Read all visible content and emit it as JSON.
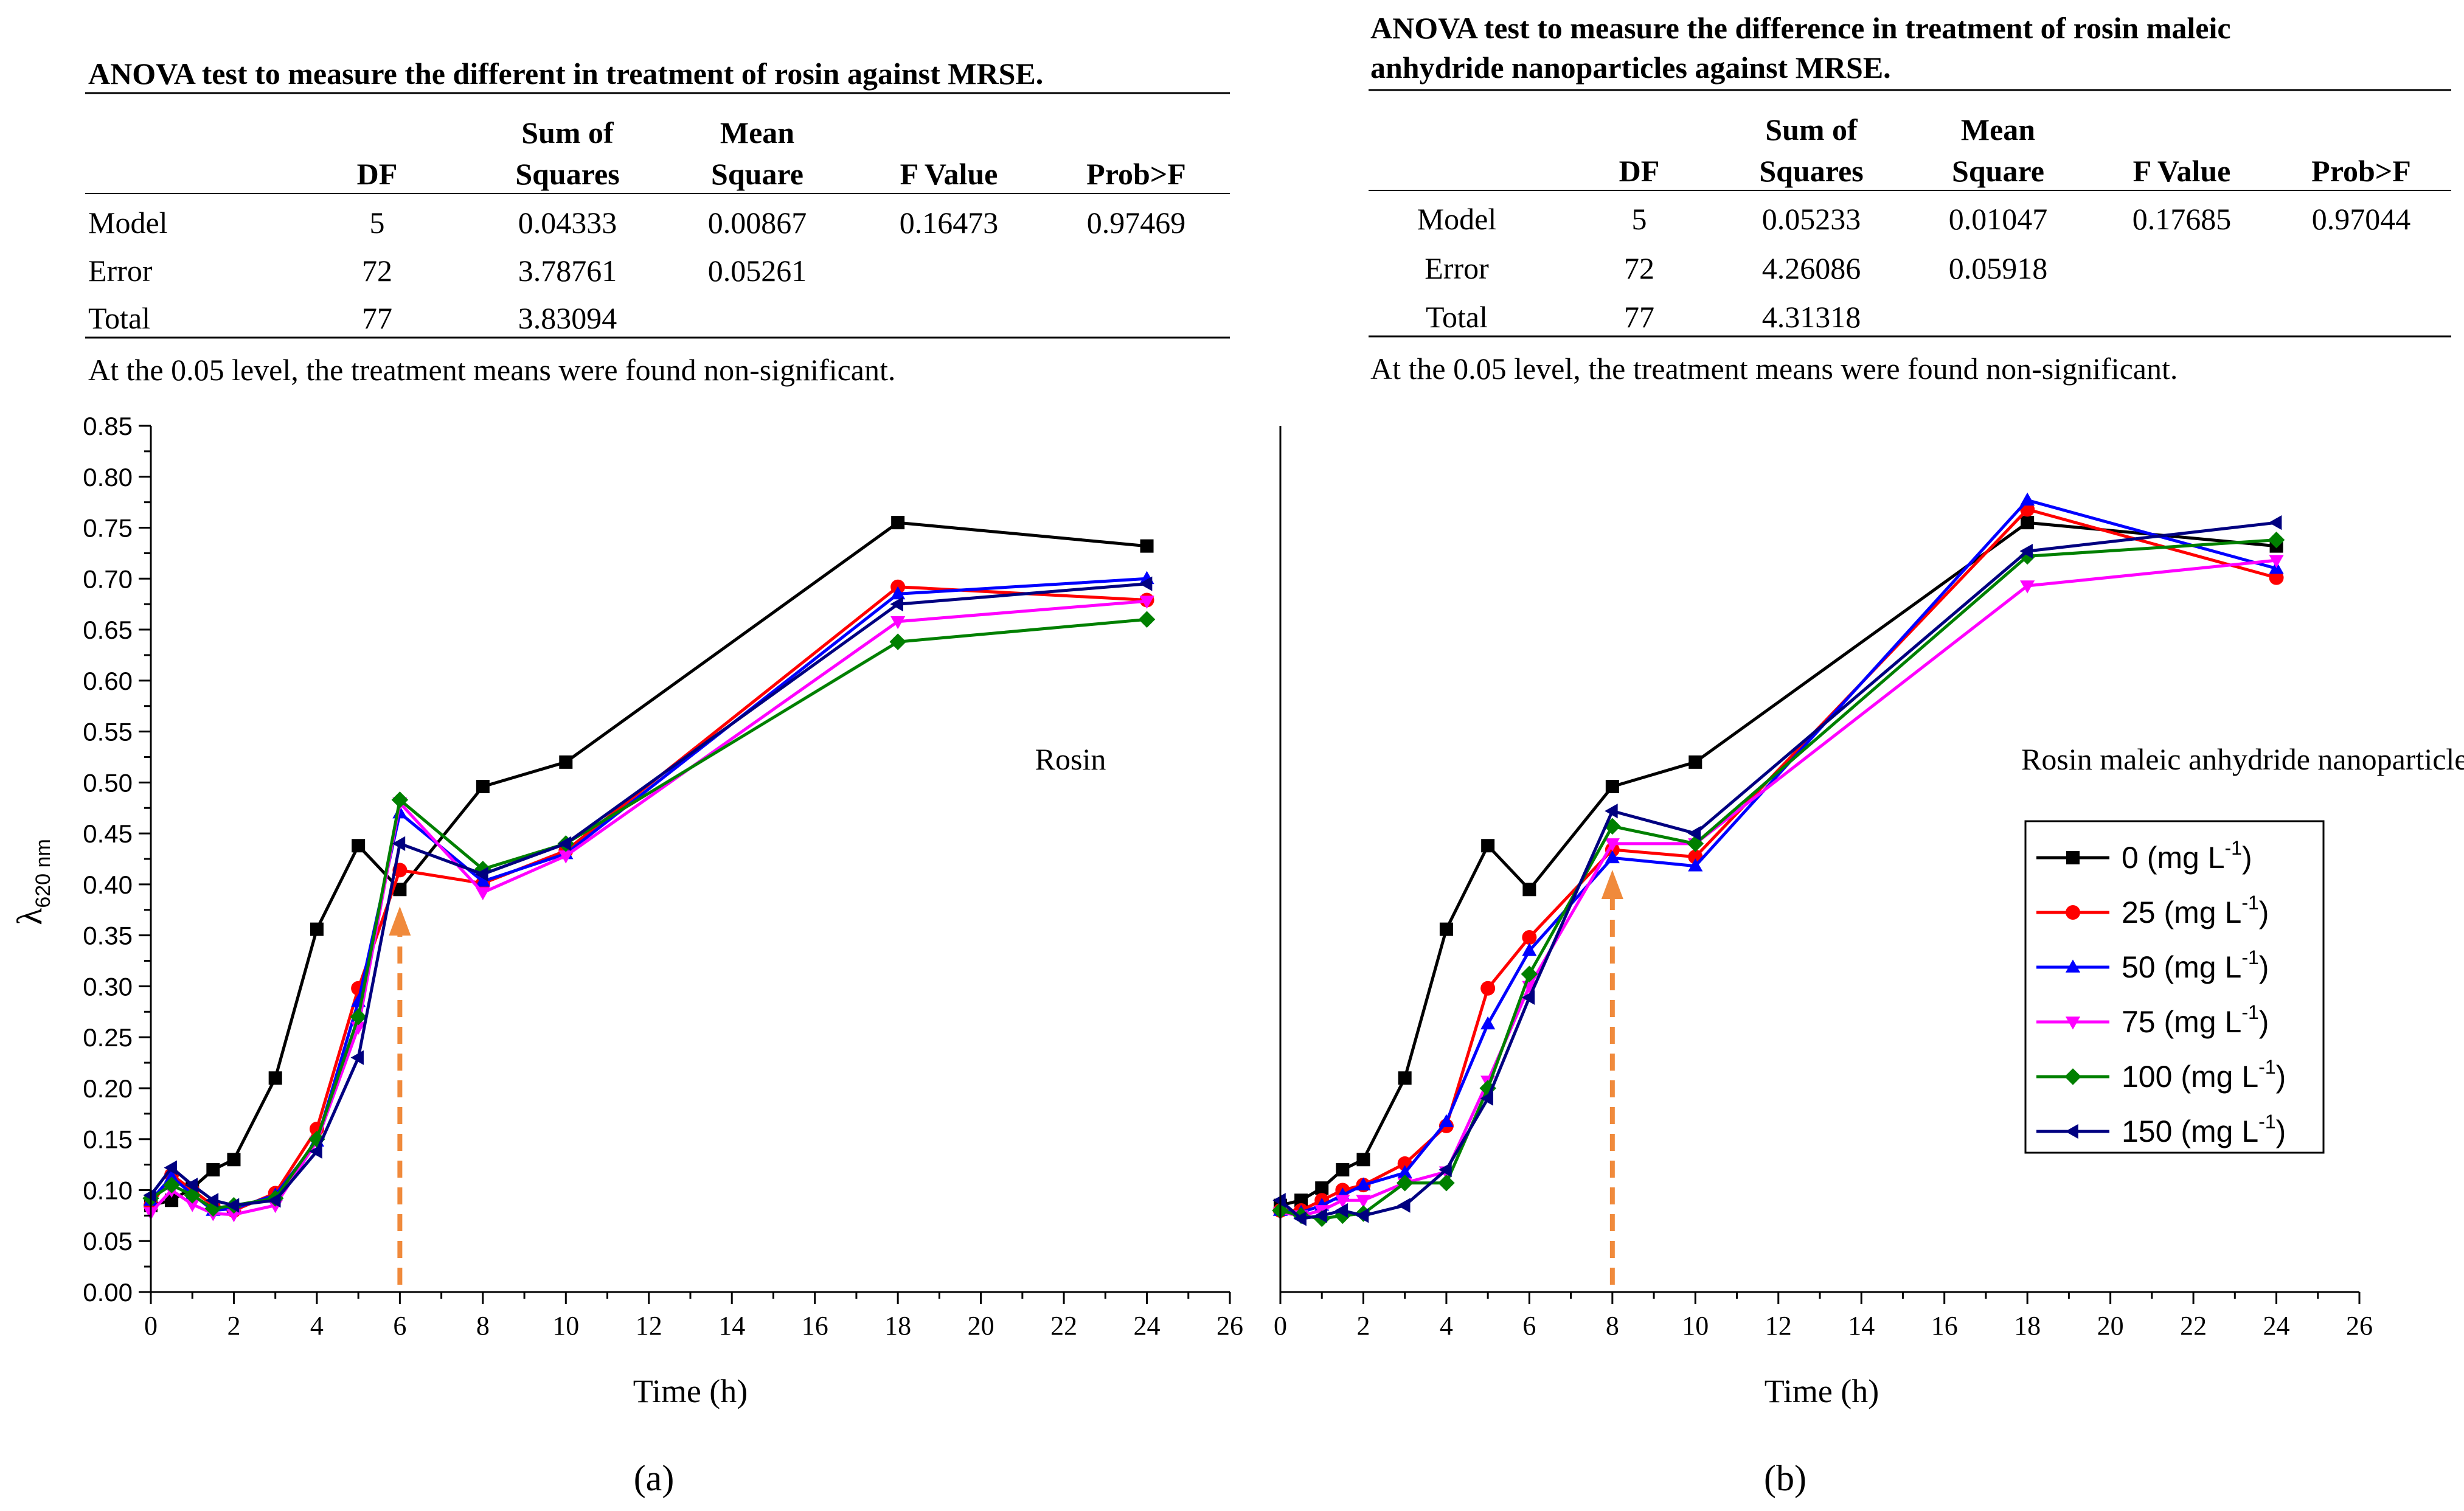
{
  "panel_a": {
    "anova": {
      "title": "ANOVA test to measure the different in treatment of rosin against MRSE.",
      "headers": {
        "df": "DF",
        "ss_line1": "Sum of",
        "ss_line2": "Squares",
        "ms_line1": "Mean",
        "ms_line2": "Square",
        "f": "F Value",
        "p": "Prob>F"
      },
      "rows": [
        {
          "source": "Model",
          "df": "5",
          "ss": "0.04333",
          "ms": "0.00867",
          "f": "0.16473",
          "p": "0.97469"
        },
        {
          "source": "Error",
          "df": "72",
          "ss": "3.78761",
          "ms": "0.05261",
          "f": "",
          "p": ""
        },
        {
          "source": "Total",
          "df": "77",
          "ss": "3.83094",
          "ms": "",
          "f": "",
          "p": ""
        }
      ],
      "note": "At the 0.05 level,  the treatment means were found non-significant."
    },
    "caption": "(a)"
  },
  "panel_b": {
    "anova": {
      "title_line1": "ANOVA test to measure the difference in treatment of rosin maleic",
      "title_line2": "anhydride nanoparticles against MRSE.",
      "headers": {
        "df": "DF",
        "ss_line1": "Sum of",
        "ss_line2": "Squares",
        "ms_line1": "Mean",
        "ms_line2": "Square",
        "f": "F Value",
        "p": "Prob>F"
      },
      "rows": [
        {
          "source": "Model",
          "df": "5",
          "ss": "0.05233",
          "ms": "0.01047",
          "f": "0.17685",
          "p": "0.97044"
        },
        {
          "source": "Error",
          "df": "72",
          "ss": "4.26086",
          "ms": "0.05918",
          "f": "",
          "p": ""
        },
        {
          "source": "Total",
          "df": "77",
          "ss": "4.31318",
          "ms": "",
          "f": "",
          "p": ""
        }
      ],
      "note": "At the 0.05 level,  the treatment means were found non-significant."
    },
    "caption": "(b)"
  },
  "colors": {
    "s0": "#000000",
    "s25": "#ff0000",
    "s50": "#0000ff",
    "s75": "#ff00ff",
    "s100": "#008000",
    "s150": "#000080",
    "arrow": "#f08a3c"
  },
  "chart_data": [
    {
      "type": "line",
      "title": "",
      "annotation": "Rosin",
      "arrow_at_x": 6,
      "xlabel": "Time (h)",
      "ylabel_main": "λ",
      "ylabel_sub": "620 nm",
      "xlim": [
        0,
        26
      ],
      "ylim": [
        0,
        0.85
      ],
      "xticks": [
        0,
        2,
        4,
        6,
        8,
        10,
        12,
        14,
        16,
        18,
        20,
        22,
        24,
        26
      ],
      "xtick_labels": [
        "0",
        "2",
        "4",
        "6",
        "8",
        "10",
        "12",
        "14",
        "16",
        "18",
        "20",
        "22",
        "24",
        "26"
      ],
      "yticks": [
        0,
        0.05,
        0.1,
        0.15,
        0.2,
        0.25,
        0.3,
        0.35,
        0.4,
        0.45,
        0.5,
        0.55,
        0.6,
        0.65,
        0.7,
        0.75,
        0.8,
        0.85
      ],
      "ytick_labels": [
        "0.00",
        "0.05",
        "0.10",
        "0.15",
        "0.20",
        "0.25",
        "0.30",
        "0.35",
        "0.40",
        "0.45",
        "0.50",
        "0.55",
        "0.60",
        "0.65",
        "0.70",
        "0.75",
        "0.80",
        "0.85"
      ],
      "x": [
        0,
        0.5,
        1,
        1.5,
        2,
        3,
        4,
        5,
        6,
        8,
        10,
        18,
        24
      ],
      "series": [
        {
          "name": "0",
          "marker": "square",
          "values": [
            0.085,
            0.09,
            0.102,
            0.12,
            0.13,
            0.21,
            0.356,
            0.438,
            0.395,
            0.496,
            0.52,
            0.755,
            0.732
          ]
        },
        {
          "name": "25",
          "marker": "circle",
          "values": [
            0.085,
            0.115,
            0.1,
            0.085,
            0.08,
            0.097,
            0.16,
            0.298,
            0.414,
            0.401,
            0.433,
            0.692,
            0.679
          ]
        },
        {
          "name": "50",
          "marker": "triangle-up",
          "values": [
            0.09,
            0.113,
            0.096,
            0.08,
            0.082,
            0.095,
            0.148,
            0.285,
            0.47,
            0.403,
            0.43,
            0.685,
            0.7
          ]
        },
        {
          "name": "75",
          "marker": "triangle-down",
          "values": [
            0.078,
            0.1,
            0.086,
            0.077,
            0.076,
            0.085,
            0.148,
            0.26,
            0.48,
            0.392,
            0.428,
            0.658,
            0.678
          ]
        },
        {
          "name": "100",
          "marker": "diamond",
          "values": [
            0.092,
            0.105,
            0.095,
            0.082,
            0.085,
            0.092,
            0.15,
            0.27,
            0.483,
            0.415,
            0.44,
            0.638,
            0.66
          ]
        },
        {
          "name": "150",
          "marker": "triangle-left",
          "values": [
            0.095,
            0.122,
            0.105,
            0.09,
            0.085,
            0.09,
            0.138,
            0.23,
            0.44,
            0.41,
            0.44,
            0.675,
            0.695
          ]
        }
      ]
    },
    {
      "type": "line",
      "title": "",
      "annotation": "Rosin maleic  anhydride nanoparticles",
      "arrow_at_x": 8,
      "xlabel": "Time (h)",
      "ylabel_main": "",
      "ylabel_sub": "",
      "xlim": [
        0,
        26
      ],
      "ylim": [
        0,
        0.85
      ],
      "xticks": [
        0,
        2,
        4,
        6,
        8,
        10,
        12,
        14,
        16,
        18,
        20,
        22,
        24,
        26
      ],
      "xtick_labels": [
        "0",
        "2",
        "4",
        "6",
        "8",
        "10",
        "12",
        "14",
        "16",
        "18",
        "20",
        "22",
        "24",
        "26"
      ],
      "x": [
        0,
        0.5,
        1,
        1.5,
        2,
        3,
        4,
        5,
        6,
        8,
        10,
        18,
        24
      ],
      "legend": {
        "position": "right-middle",
        "entries": [
          "0 (mg L",
          "25 (mg L",
          "50 (mg L",
          "75 (mg L",
          "100 (mg L",
          "150 (mg L"
        ],
        "sup": "-1",
        "close": ")"
      },
      "series": [
        {
          "name": "0",
          "marker": "square",
          "values": [
            0.085,
            0.09,
            0.102,
            0.12,
            0.13,
            0.21,
            0.356,
            0.438,
            0.395,
            0.496,
            0.52,
            0.755,
            0.732
          ]
        },
        {
          "name": "25",
          "marker": "circle",
          "values": [
            0.08,
            0.08,
            0.09,
            0.1,
            0.105,
            0.126,
            0.163,
            0.298,
            0.348,
            0.434,
            0.427,
            0.768,
            0.701
          ]
        },
        {
          "name": "50",
          "marker": "triangle-up",
          "values": [
            0.08,
            0.078,
            0.085,
            0.095,
            0.105,
            0.117,
            0.167,
            0.263,
            0.335,
            0.426,
            0.418,
            0.777,
            0.71
          ]
        },
        {
          "name": "75",
          "marker": "triangle-down",
          "values": [
            0.078,
            0.075,
            0.08,
            0.09,
            0.09,
            0.107,
            0.118,
            0.207,
            0.3,
            0.44,
            0.44,
            0.693,
            0.718
          ]
        },
        {
          "name": "100",
          "marker": "diamond",
          "values": [
            0.08,
            0.075,
            0.072,
            0.075,
            0.077,
            0.107,
            0.107,
            0.2,
            0.312,
            0.457,
            0.44,
            0.722,
            0.738
          ]
        },
        {
          "name": "150",
          "marker": "triangle-left",
          "values": [
            0.09,
            0.072,
            0.075,
            0.08,
            0.075,
            0.085,
            0.12,
            0.19,
            0.289,
            0.472,
            0.45,
            0.727,
            0.755
          ]
        }
      ]
    }
  ]
}
